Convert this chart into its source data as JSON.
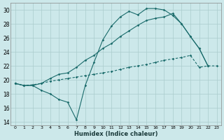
{
  "xlabel": "Humidex (Indice chaleur)",
  "bg_color": "#cce8ea",
  "grid_color": "#aacccc",
  "line_color": "#1a6b6b",
  "xlim": [
    -0.5,
    23.5
  ],
  "ylim": [
    13.5,
    31
  ],
  "yticks": [
    14,
    16,
    18,
    20,
    22,
    24,
    26,
    28,
    30
  ],
  "xticks": [
    0,
    1,
    2,
    3,
    4,
    5,
    6,
    7,
    8,
    9,
    10,
    11,
    12,
    13,
    14,
    15,
    16,
    17,
    18,
    19,
    20,
    21,
    22,
    23
  ],
  "s1_x": [
    0,
    1,
    2,
    3,
    4,
    5,
    6,
    7,
    8,
    9,
    10,
    11,
    12,
    13,
    14,
    15,
    16,
    17,
    18,
    19,
    20,
    21,
    22,
    23
  ],
  "s1_y": [
    19.5,
    19.2,
    19.2,
    18.5,
    18.0,
    17.2,
    16.8,
    14.3,
    19.2,
    22.5,
    25.7,
    27.7,
    29.0,
    29.8,
    29.3,
    30.2,
    30.2,
    30.0,
    29.2,
    28.0,
    26.2,
    24.5,
    22.0,
    null
  ],
  "s2_x": [
    0,
    1,
    2,
    3,
    4,
    5,
    6,
    7,
    8,
    9,
    10,
    11,
    12,
    13,
    14,
    15,
    16,
    17,
    18,
    19,
    20,
    21,
    22,
    23
  ],
  "s2_y": [
    19.5,
    19.2,
    19.2,
    19.5,
    20.2,
    20.8,
    21.0,
    21.8,
    22.8,
    23.5,
    24.5,
    25.2,
    26.2,
    27.0,
    27.8,
    28.5,
    28.8,
    29.0,
    29.5,
    28.0,
    26.2,
    24.5,
    22.0,
    null
  ],
  "s3_x": [
    0,
    1,
    2,
    3,
    4,
    5,
    6,
    7,
    8,
    9,
    10,
    11,
    12,
    13,
    14,
    15,
    16,
    17,
    18,
    19,
    20,
    21,
    22,
    23
  ],
  "s3_y": [
    19.5,
    19.2,
    19.3,
    19.5,
    19.8,
    20.0,
    20.2,
    20.4,
    20.6,
    20.8,
    21.0,
    21.2,
    21.5,
    21.8,
    22.0,
    22.2,
    22.5,
    22.8,
    23.0,
    23.2,
    23.5,
    21.8,
    22.0,
    22.0
  ]
}
